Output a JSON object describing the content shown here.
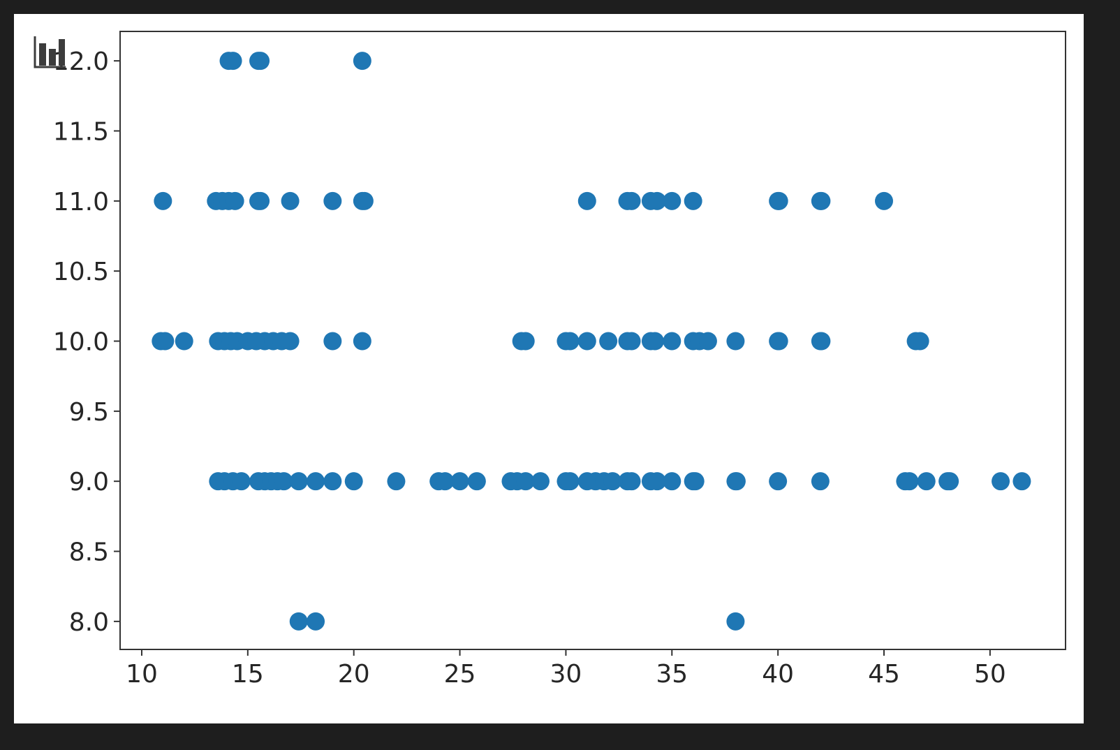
{
  "chart_data": {
    "type": "scatter",
    "title": "",
    "xlabel": "",
    "ylabel": "",
    "xlim": [
      8.98,
      53.56
    ],
    "ylim": [
      7.8,
      12.21
    ],
    "xticks": [
      10,
      15,
      20,
      25,
      30,
      35,
      40,
      45,
      50
    ],
    "yticks": [
      8.0,
      8.5,
      9.0,
      9.5,
      10.0,
      10.5,
      11.0,
      11.5,
      12.0
    ],
    "xtick_labels": [
      "10",
      "15",
      "20",
      "25",
      "30",
      "35",
      "40",
      "45",
      "50"
    ],
    "ytick_labels": [
      "8.0",
      "8.5",
      "9.0",
      "9.5",
      "10.0",
      "10.5",
      "11.0",
      "11.5",
      "12.0"
    ],
    "grid": false,
    "marker_color": "#1f77b4",
    "points": [
      [
        14.1,
        12
      ],
      [
        14.3,
        12
      ],
      [
        15.5,
        12
      ],
      [
        15.6,
        12
      ],
      [
        20.4,
        12
      ],
      [
        11,
        11
      ],
      [
        13.5,
        11
      ],
      [
        13.8,
        11
      ],
      [
        14.1,
        11
      ],
      [
        14.4,
        11
      ],
      [
        15.5,
        11
      ],
      [
        15.6,
        11
      ],
      [
        17,
        11
      ],
      [
        19,
        11
      ],
      [
        20.4,
        11
      ],
      [
        20.5,
        11
      ],
      [
        31,
        11
      ],
      [
        32.9,
        11
      ],
      [
        33.1,
        11
      ],
      [
        34,
        11
      ],
      [
        34.3,
        11
      ],
      [
        35,
        11
      ],
      [
        36,
        11
      ],
      [
        40,
        11
      ],
      [
        40.05,
        11
      ],
      [
        42,
        11
      ],
      [
        42.05,
        11
      ],
      [
        45,
        11
      ],
      [
        10.9,
        10
      ],
      [
        11.1,
        10
      ],
      [
        12,
        10
      ],
      [
        13.6,
        10
      ],
      [
        13.9,
        10
      ],
      [
        14.2,
        10
      ],
      [
        14.5,
        10
      ],
      [
        15,
        10
      ],
      [
        15.4,
        10
      ],
      [
        15.8,
        10
      ],
      [
        16.2,
        10
      ],
      [
        16.6,
        10
      ],
      [
        17,
        10
      ],
      [
        19,
        10
      ],
      [
        20.4,
        10
      ],
      [
        27.9,
        10
      ],
      [
        28.1,
        10
      ],
      [
        30,
        10
      ],
      [
        30.2,
        10
      ],
      [
        31,
        10
      ],
      [
        32,
        10
      ],
      [
        32.9,
        10
      ],
      [
        33.1,
        10
      ],
      [
        34,
        10
      ],
      [
        34.2,
        10
      ],
      [
        35,
        10
      ],
      [
        36,
        10
      ],
      [
        36.3,
        10
      ],
      [
        36.7,
        10
      ],
      [
        38,
        10
      ],
      [
        40,
        10
      ],
      [
        40.05,
        10
      ],
      [
        42,
        10
      ],
      [
        42.05,
        10
      ],
      [
        46.5,
        10
      ],
      [
        46.7,
        10
      ],
      [
        13.6,
        9
      ],
      [
        13.9,
        9
      ],
      [
        14.3,
        9
      ],
      [
        14.7,
        9
      ],
      [
        15.5,
        9
      ],
      [
        15.8,
        9
      ],
      [
        16.1,
        9
      ],
      [
        16.4,
        9
      ],
      [
        16.7,
        9
      ],
      [
        17.4,
        9
      ],
      [
        18.2,
        9
      ],
      [
        19,
        9
      ],
      [
        20,
        9
      ],
      [
        22,
        9
      ],
      [
        24,
        9
      ],
      [
        24.3,
        9
      ],
      [
        25,
        9
      ],
      [
        25.8,
        9
      ],
      [
        27.4,
        9
      ],
      [
        27.7,
        9
      ],
      [
        28.1,
        9
      ],
      [
        28.8,
        9
      ],
      [
        30,
        9
      ],
      [
        30.2,
        9
      ],
      [
        31,
        9
      ],
      [
        31.4,
        9
      ],
      [
        31.8,
        9
      ],
      [
        32.2,
        9
      ],
      [
        32.9,
        9
      ],
      [
        33.1,
        9
      ],
      [
        34,
        9
      ],
      [
        34.3,
        9
      ],
      [
        35,
        9
      ],
      [
        36,
        9
      ],
      [
        36.1,
        9
      ],
      [
        38,
        9
      ],
      [
        38.05,
        9
      ],
      [
        40,
        9
      ],
      [
        42,
        9
      ],
      [
        46,
        9
      ],
      [
        46.2,
        9
      ],
      [
        47,
        9
      ],
      [
        48,
        9
      ],
      [
        48.1,
        9
      ],
      [
        50.5,
        9
      ],
      [
        51.5,
        9
      ],
      [
        17.4,
        8
      ],
      [
        18.2,
        8
      ],
      [
        38,
        8
      ]
    ]
  },
  "toolbar": {
    "icon": "bar-chart-icon"
  }
}
